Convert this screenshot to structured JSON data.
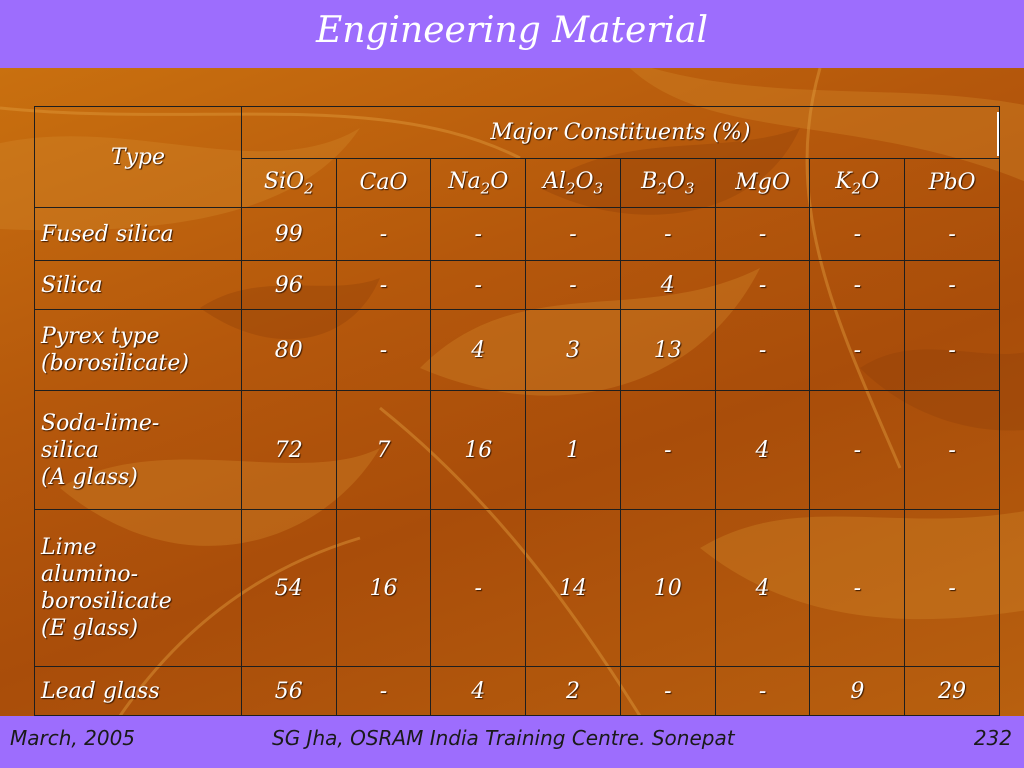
{
  "title": "Engineering Material",
  "table": {
    "type_header": "Type",
    "group_header": "Major Constituents (%)",
    "components": [
      {
        "base": "SiO",
        "sub": "2",
        "tail": ""
      },
      {
        "base": "CaO",
        "sub": "",
        "tail": ""
      },
      {
        "base": "Na",
        "sub": "2",
        "tail": "O"
      },
      {
        "base": "Al",
        "sub": "2",
        "tail": "O",
        "sub2": "3"
      },
      {
        "base": "B",
        "sub": "2",
        "tail": "O",
        "sub2": "3"
      },
      {
        "base": "MgO",
        "sub": "",
        "tail": ""
      },
      {
        "base": "K",
        "sub": "2",
        "tail": "O"
      },
      {
        "base": "PbO",
        "sub": "",
        "tail": ""
      }
    ],
    "rows": [
      {
        "type": "Fused silica",
        "values": [
          "99",
          "-",
          "-",
          "-",
          "-",
          "-",
          "-",
          "-"
        ]
      },
      {
        "type": "Silica",
        "values": [
          "96",
          "-",
          "-",
          "-",
          "4",
          "-",
          "-",
          "-"
        ]
      },
      {
        "type": "Pyrex type (borosilicate)",
        "type_lines": [
          "Pyrex type",
          "(borosilicate)"
        ],
        "values": [
          "80",
          "-",
          "4",
          "3",
          "13",
          "-",
          "-",
          "-"
        ]
      },
      {
        "type": "Soda-lime-silica (A glass)",
        "type_lines": [
          "Soda-lime-",
          "silica",
          "(A glass)"
        ],
        "values": [
          "72",
          "7",
          "16",
          "1",
          "-",
          "4",
          "-",
          "-"
        ]
      },
      {
        "type": "Lime alumino-borosilicate (E glass)",
        "type_lines": [
          "Lime",
          "alumino-",
          "borosilicate",
          "(E glass)"
        ],
        "values": [
          "54",
          "16",
          "-",
          "14",
          "10",
          "4",
          "-",
          "-"
        ]
      },
      {
        "type": "Lead glass",
        "values": [
          "56",
          "-",
          "4",
          "2",
          "-",
          "-",
          "9",
          "29"
        ]
      }
    ]
  },
  "footer": {
    "date": "March, 2005",
    "author": "SG Jha, OSRAM India Training Centre. Sonepat",
    "page": "232"
  },
  "colors": {
    "title_bar": "#9d6dfd",
    "background": "#b8600e",
    "text": "#ffffff"
  }
}
